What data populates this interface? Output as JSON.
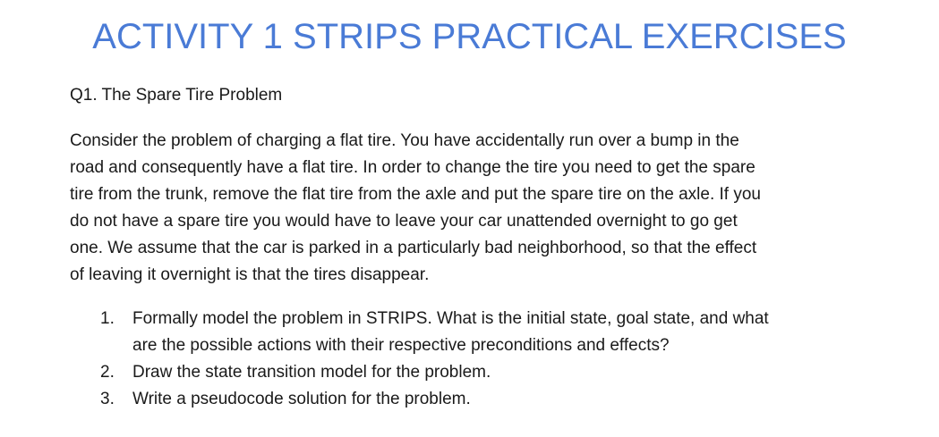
{
  "document": {
    "title": "ACTIVITY 1 STRIPS PRACTICAL EXERCISES",
    "question_heading": "Q1. The Spare Tire Problem",
    "paragraph_lines": [
      "Consider the problem of charging a flat tire. You have accidentally run over a bump in the",
      "road and consequently have a flat tire. In order to change the tire you need to get the spare",
      "tire from the trunk, remove the flat tire from the axle and put the spare tire on the axle. If you",
      "do not have a spare tire you would have to leave your car unattended overnight to go get",
      "one.  We assume that the car is parked in a particularly bad neighborhood, so that the effect",
      "of leaving it overnight is that the tires disappear."
    ],
    "tasks": [
      {
        "number": "1.",
        "lines": [
          "Formally model the problem in STRIPS. What is the initial state, goal state, and what",
          "are the possible actions with their respective preconditions and effects?"
        ]
      },
      {
        "number": "2.",
        "lines": [
          "Draw the state transition model for the problem."
        ]
      },
      {
        "number": "3.",
        "lines": [
          "Write a pseudocode solution for the problem."
        ]
      }
    ],
    "colors": {
      "title": "#4a7bd6",
      "text": "#1a1a1a",
      "background": "#ffffff"
    }
  }
}
